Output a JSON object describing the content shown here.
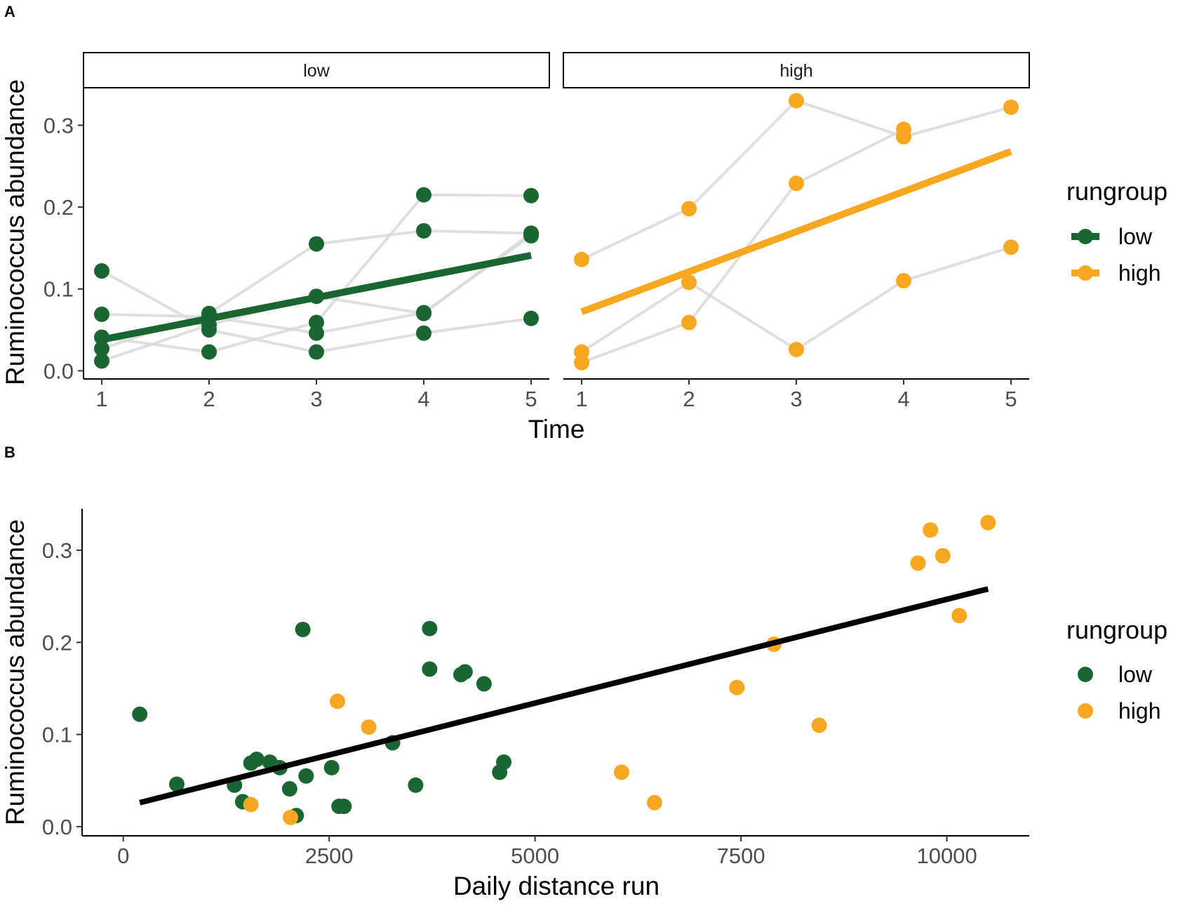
{
  "figure": {
    "panel_a_letter": "A",
    "panel_b_letter": "B"
  },
  "colors": {
    "low": "#1a6632",
    "high": "#f8a820",
    "trajectory": "#d9d9d9",
    "fit_b": "#000000"
  },
  "chart_data": [
    {
      "id": "panel_a",
      "type": "line",
      "facets": [
        "low",
        "high"
      ],
      "xlabel": "Time",
      "ylabel": "Ruminococcus abundance",
      "xlim": [
        0.83,
        5.17
      ],
      "ylim": [
        -0.01,
        0.345
      ],
      "x_ticks": [
        1,
        2,
        3,
        4,
        5
      ],
      "y_ticks": [
        0.0,
        0.1,
        0.2,
        0.3
      ],
      "y_tick_labels": [
        "0.0",
        "0.1",
        "0.2",
        "0.3"
      ],
      "legend": {
        "title": "rungroup",
        "entries": [
          "low",
          "high"
        ]
      },
      "panels": [
        {
          "facet": "low",
          "group": "low",
          "trajectories": [
            [
              0.122,
              0.05,
              0.023,
              0.046,
              0.064
            ],
            [
              0.069,
              0.066,
              0.046,
              0.071,
              0.165
            ],
            [
              0.041,
              0.023,
              0.059,
              0.215,
              0.214
            ],
            [
              0.027,
              0.07,
              0.155,
              0.171,
              0.168
            ],
            [
              0.012,
              0.056,
              0.091,
              0.07,
              0.168
            ]
          ],
          "fit": {
            "x": [
              1,
              5
            ],
            "y": [
              0.038,
              0.141
            ]
          }
        },
        {
          "facet": "high",
          "group": "high",
          "trajectories": [
            [
              0.136,
              0.198,
              0.33,
              0.286,
              0.322
            ],
            [
              0.023,
              0.108,
              0.026,
              0.11,
              0.151
            ],
            [
              0.01,
              0.059,
              0.229,
              0.295,
              null
            ]
          ],
          "fit": {
            "x": [
              1,
              5
            ],
            "y": [
              0.072,
              0.268
            ]
          }
        }
      ]
    },
    {
      "id": "panel_b",
      "type": "scatter",
      "xlabel": "Daily distance run",
      "ylabel": "Ruminococcus abundance",
      "xlim": [
        -500,
        11000
      ],
      "ylim": [
        -0.01,
        0.345
      ],
      "x_ticks": [
        0,
        2500,
        5000,
        7500,
        10000
      ],
      "x_tick_labels": [
        "0",
        "2500",
        "5000",
        "7500",
        "10000"
      ],
      "y_ticks": [
        0.0,
        0.1,
        0.2,
        0.3
      ],
      "y_tick_labels": [
        "0.0",
        "0.1",
        "0.2",
        "0.3"
      ],
      "legend": {
        "title": "rungroup",
        "entries": [
          "low",
          "high"
        ]
      },
      "series": [
        {
          "name": "low",
          "points": [
            [
              200,
              0.122
            ],
            [
              650,
              0.046
            ],
            [
              1350,
              0.045
            ],
            [
              1450,
              0.027
            ],
            [
              1550,
              0.069
            ],
            [
              1620,
              0.073
            ],
            [
              1780,
              0.07
            ],
            [
              1900,
              0.064
            ],
            [
              2020,
              0.041
            ],
            [
              2100,
              0.012
            ],
            [
              2180,
              0.214
            ],
            [
              2220,
              0.055
            ],
            [
              2530,
              0.064
            ],
            [
              2620,
              0.022
            ],
            [
              2680,
              0.022
            ],
            [
              3270,
              0.091
            ],
            [
              3550,
              0.045
            ],
            [
              3720,
              0.215
            ],
            [
              3720,
              0.171
            ],
            [
              4100,
              0.165
            ],
            [
              4150,
              0.168
            ],
            [
              4380,
              0.155
            ],
            [
              4570,
              0.059
            ],
            [
              4620,
              0.07
            ]
          ]
        },
        {
          "name": "high",
          "points": [
            [
              1550,
              0.024
            ],
            [
              2030,
              0.01
            ],
            [
              2600,
              0.136
            ],
            [
              2980,
              0.108
            ],
            [
              6050,
              0.059
            ],
            [
              6450,
              0.026
            ],
            [
              7450,
              0.151
            ],
            [
              7900,
              0.198
            ],
            [
              8450,
              0.11
            ],
            [
              9650,
              0.286
            ],
            [
              9800,
              0.322
            ],
            [
              9950,
              0.294
            ],
            [
              10150,
              0.229
            ],
            [
              10500,
              0.33
            ]
          ]
        }
      ],
      "fit": {
        "x": [
          200,
          10500
        ],
        "y": [
          0.026,
          0.258
        ]
      }
    }
  ]
}
